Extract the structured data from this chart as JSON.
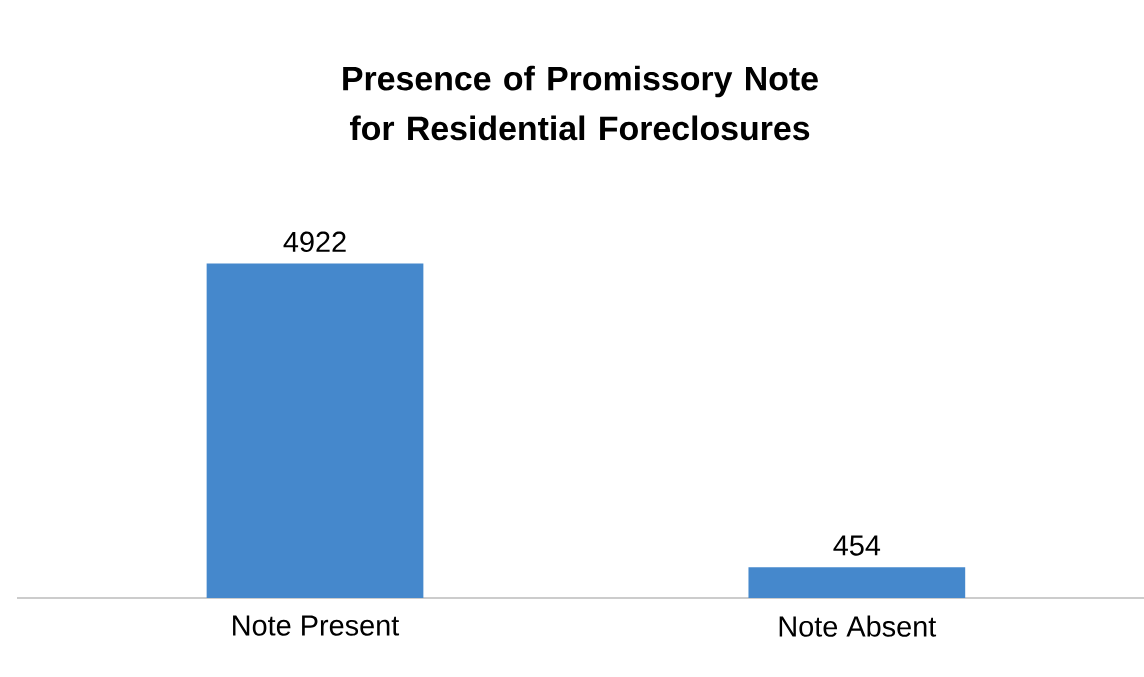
{
  "chart_data": {
    "type": "bar",
    "title": "Presence of Promissory Note for Residential Foreclosures",
    "categories": [
      "Note Present",
      "Note Absent"
    ],
    "values": [
      4922,
      454
    ],
    "color": "#4588cc",
    "data_labels": true
  }
}
